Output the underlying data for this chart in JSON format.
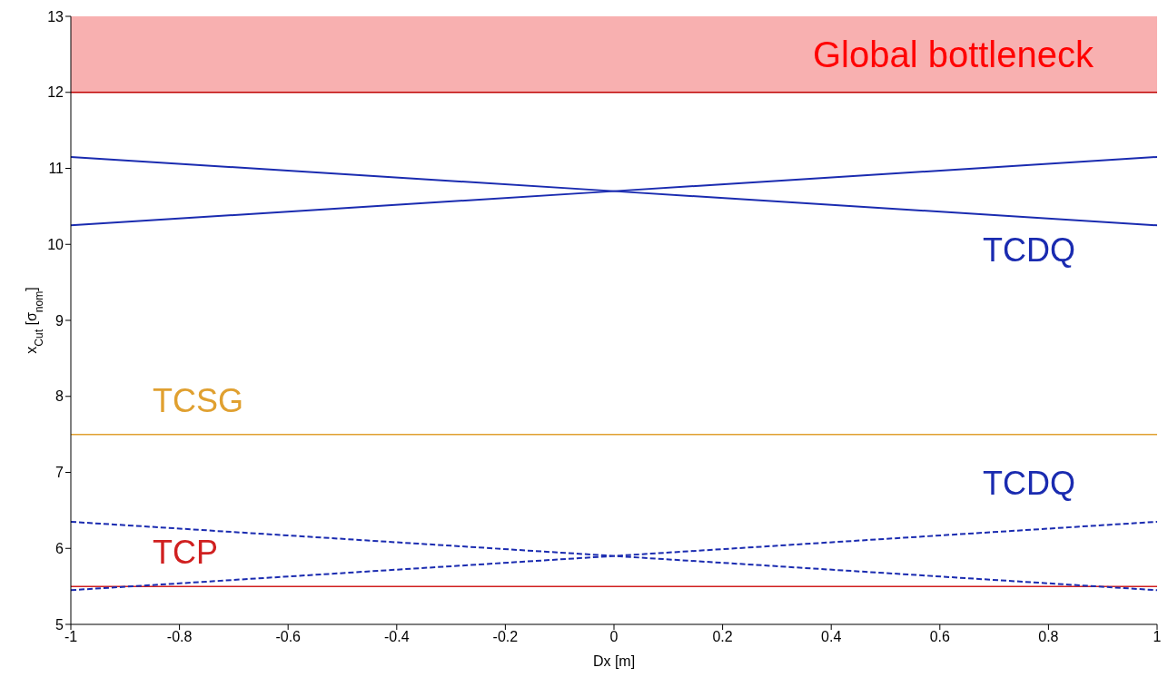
{
  "chart_data": {
    "type": "line",
    "xlabel": "Dx [m]",
    "ylabel": "x$_{Cut}$ [σ$_{nom}$]",
    "xlim": [
      -1,
      1
    ],
    "xticks": [
      -1,
      -0.8,
      -0.6,
      -0.4,
      -0.2,
      0,
      0.2,
      0.4,
      0.6,
      0.8,
      1
    ],
    "ylim": [
      5,
      13
    ],
    "yticks": [
      5,
      6,
      7,
      8,
      9,
      10,
      11,
      12,
      13
    ],
    "series": [
      {
        "name": "TCDQ",
        "color": "#1a2bb0",
        "x": [
          -1,
          0,
          1
        ],
        "values": [
          11.15,
          10.7,
          10.25
        ],
        "line_style": "solid"
      },
      {
        "color": "#1a2bb0",
        "x": [
          -1,
          0,
          1
        ],
        "values": [
          10.25,
          10.7,
          11.15
        ],
        "line_style": "solid"
      },
      {
        "name": "TCDQ",
        "color": "#1a2bb0",
        "x": [
          -1,
          0,
          1
        ],
        "values": [
          5.45,
          5.9,
          6.35
        ],
        "line_style": "dashed"
      },
      {
        "color": "#1a2bb0",
        "x": [
          -1,
          0,
          1
        ],
        "values": [
          6.35,
          5.9,
          5.45
        ],
        "line_style": "dashed"
      }
    ],
    "ref_lines": [
      {
        "axis": "y",
        "value": 12,
        "color": "#c00000"
      },
      {
        "axis": "y",
        "value": 7.5,
        "label": "TCSG",
        "color": "#e0a030"
      },
      {
        "axis": "y",
        "value": 5.5,
        "label": "TCP",
        "color": "#d02020"
      }
    ],
    "bands": [
      {
        "axis": "y",
        "from": 12,
        "to": 13,
        "label": "Global bottleneck",
        "color": "#f8b0b0"
      }
    ],
    "marker": "none"
  }
}
